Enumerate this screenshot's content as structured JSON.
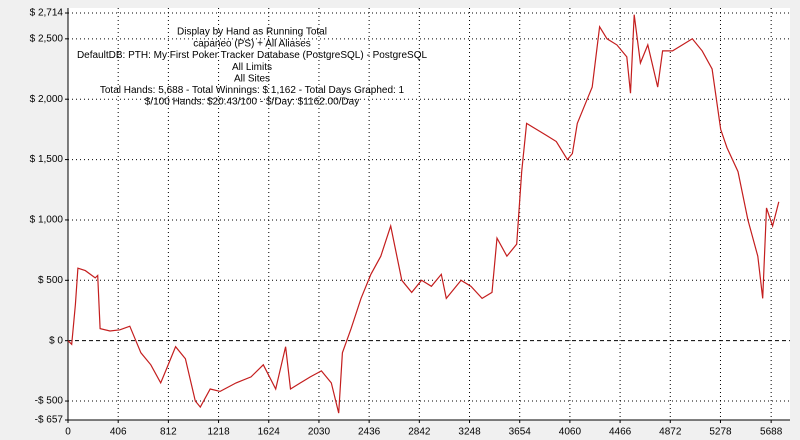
{
  "chart_data": {
    "type": "line",
    "title": "Display by Hand as Running Total",
    "subtitle_lines": [
      "capaneo (PS) + All Aliases",
      "DefaultDB: PTH: My First Poker Tracker Database (PostgreSQL) - PostgreSQL",
      "All Limits",
      "All Sites",
      "Total Hands: 5,688 - Total Winnings: $ 1,162 - Total Days Graphed: 1",
      "$/100 Hands: $20.43/100 - $/Day: $1162.00/Day"
    ],
    "x": [
      0,
      30,
      60,
      80,
      140,
      220,
      240,
      260,
      340,
      420,
      500,
      590,
      670,
      750,
      790,
      870,
      950,
      1030,
      1070,
      1150,
      1230,
      1360,
      1480,
      1580,
      1680,
      1760,
      1800,
      1880,
      1960,
      2050,
      2130,
      2190,
      2220,
      2290,
      2370,
      2450,
      2530,
      2610,
      2700,
      2780,
      2860,
      2940,
      3020,
      3060,
      3180,
      3260,
      3350,
      3430,
      3470,
      3550,
      3630,
      3670,
      3710,
      3790,
      3870,
      3950,
      4040,
      4080,
      4120,
      4200,
      4240,
      4300,
      4360,
      4440,
      4520,
      4550,
      4580,
      4630,
      4690,
      4770,
      4810,
      4890,
      4970,
      5050,
      5130,
      5210,
      5280,
      5330,
      5420,
      5500,
      5580,
      5620,
      5650,
      5700,
      5750
    ],
    "series": [
      {
        "name": "Running Total",
        "color": "#c41e1e",
        "values": [
          0,
          -30,
          300,
          600,
          580,
          520,
          540,
          100,
          80,
          90,
          120,
          -100,
          -200,
          -350,
          -250,
          -50,
          -150,
          -500,
          -550,
          -400,
          -420,
          -350,
          -300,
          -200,
          -400,
          -50,
          -400,
          -350,
          -300,
          -250,
          -350,
          -600,
          -100,
          100,
          350,
          550,
          700,
          950,
          500,
          400,
          500,
          450,
          550,
          350,
          500,
          450,
          350,
          400,
          850,
          700,
          800,
          1400,
          1800,
          1750,
          1700,
          1650,
          1500,
          1550,
          1800,
          2000,
          2100,
          2600,
          2500,
          2450,
          2350,
          2050,
          2700,
          2300,
          2450,
          2100,
          2400,
          2400,
          2450,
          2500,
          2400,
          2250,
          1750,
          1600,
          1400,
          1000,
          700,
          350,
          1100,
          950,
          1150
        ]
      }
    ],
    "xlim": [
      0,
      5800
    ],
    "xticks": [
      0,
      406,
      812,
      1218,
      1624,
      2030,
      2436,
      2842,
      3248,
      3654,
      4060,
      4466,
      4872,
      5278,
      5688
    ],
    "ylim": [
      -657,
      2714
    ],
    "yticks": [
      {
        "value": -657,
        "label": "-$ 657"
      },
      {
        "value": -500,
        "label": "-$ 500"
      },
      {
        "value": 0,
        "label": "$ 0"
      },
      {
        "value": 500,
        "label": "$ 500"
      },
      {
        "value": 1000,
        "label": "$ 1,000"
      },
      {
        "value": 1500,
        "label": "$ 1,500"
      },
      {
        "value": 2000,
        "label": "$ 2,000"
      },
      {
        "value": 2500,
        "label": "$ 2,500"
      },
      {
        "value": 2714,
        "label": "$ 2,714"
      }
    ],
    "grid": true
  }
}
